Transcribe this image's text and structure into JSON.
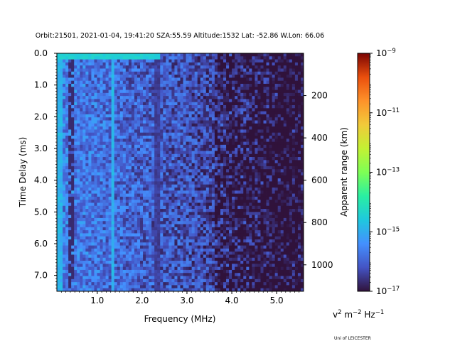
{
  "chart_data": {
    "type": "heatmap",
    "title": "Orbit:21501, 2021-01-04, 19:41:20 SZA:55.59 Altitude:1532 Lat: -52.86 W.Lon: 66.06",
    "xlabel": "Frequency (MHz)",
    "ylabel": "Time Delay (ms)",
    "y2label": "Apparent range (km)",
    "xlim": [
      0.1,
      5.6
    ],
    "ylim": [
      7.5,
      0.0
    ],
    "x_ticks": [
      "1.0",
      "2.0",
      "3.0",
      "4.0",
      "5.0"
    ],
    "y_ticks": [
      "0.0",
      "1.0",
      "2.0",
      "3.0",
      "4.0",
      "5.0",
      "6.0",
      "7.0"
    ],
    "y2_ticks": [
      "200",
      "400",
      "600",
      "800",
      "1000"
    ],
    "colorbar": {
      "scale": "log",
      "range": [
        1e-17,
        1e-09
      ],
      "tick_base": "10",
      "ticks": [
        {
          "base": "10",
          "exp": "−9",
          "value": -9
        },
        {
          "base": "10",
          "exp": "−11",
          "value": -11
        },
        {
          "base": "10",
          "exp": "−13",
          "value": -13
        },
        {
          "base": "10",
          "exp": "−15",
          "value": -15
        },
        {
          "base": "10",
          "exp": "−17",
          "value": -17
        }
      ],
      "units": {
        "v": "v",
        "v_exp": "2",
        "m": " m",
        "m_exp": "−2",
        "hz": " Hz",
        "hz_exp": "−1"
      }
    },
    "features": {
      "strong_lines_mhz": [
        0.18,
        1.35,
        2.35
      ],
      "top_echo_row_ms": 0.12,
      "noise_floor_log": -16.5
    }
  },
  "footer": {
    "credit": "Uni of LEICESTER"
  }
}
